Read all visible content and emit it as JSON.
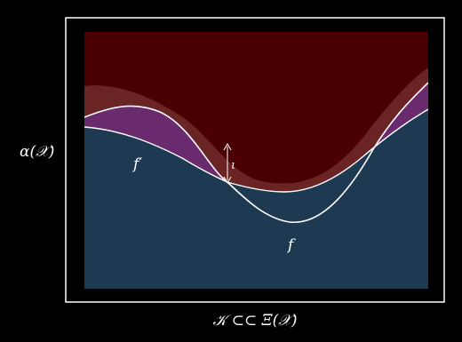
{
  "labels": {
    "y_axis": "α(𝒳)",
    "x_axis": "𝒦 ⊂⊂ Ξ(𝒳)",
    "curve_f": "f",
    "curve_f_prime": "f′",
    "gap": "ι"
  },
  "colors": {
    "background": "#000000",
    "frame": "#ffffff",
    "upper_region": "#4a0000",
    "upper_band": "#6b2424",
    "lower_region": "#1e3a52",
    "between_curves": "#6a2a6e",
    "curve_stroke": "#ffffff"
  }
}
